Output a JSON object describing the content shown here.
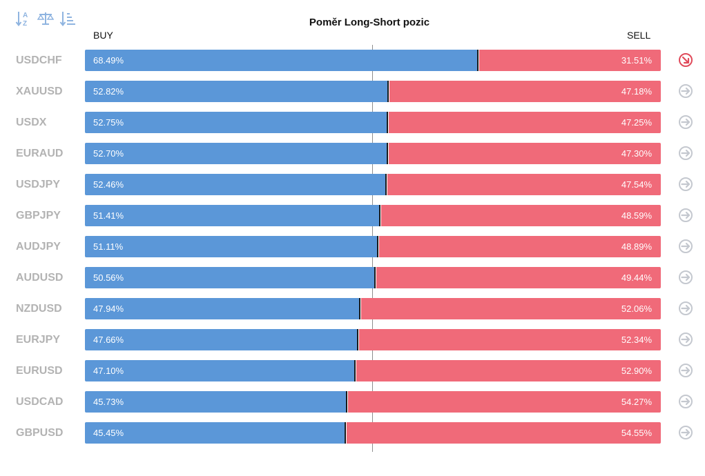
{
  "toolbar": {
    "icons": [
      "sort-alpha-icon",
      "balance-icon",
      "sort-list-icon"
    ]
  },
  "chart_data": {
    "type": "bar",
    "title": "Poměr Long-Short pozic",
    "series": [
      {
        "name": "BUY",
        "values": [
          68.49,
          52.82,
          52.75,
          52.7,
          52.46,
          51.41,
          51.11,
          50.56,
          47.94,
          47.66,
          47.1,
          45.73,
          45.45
        ]
      },
      {
        "name": "SELL",
        "values": [
          31.51,
          47.18,
          47.25,
          47.3,
          47.54,
          48.59,
          48.89,
          49.44,
          52.06,
          52.34,
          52.9,
          54.27,
          54.55
        ]
      }
    ],
    "categories": [
      "USDCHF",
      "XAUUSD",
      "USDX",
      "EURAUD",
      "USDJPY",
      "GBPJPY",
      "AUDJPY",
      "AUDUSD",
      "NZDUSD",
      "EURJPY",
      "EURUSD",
      "USDCAD",
      "GBPUSD"
    ],
    "rows": [
      {
        "symbol": "USDCHF",
        "buy": 68.49,
        "sell": 31.51,
        "buy_label": "68.49%",
        "sell_label": "31.51%",
        "signal": "down"
      },
      {
        "symbol": "XAUUSD",
        "buy": 52.82,
        "sell": 47.18,
        "buy_label": "52.82%",
        "sell_label": "47.18%",
        "signal": "neutral"
      },
      {
        "symbol": "USDX",
        "buy": 52.75,
        "sell": 47.25,
        "buy_label": "52.75%",
        "sell_label": "47.25%",
        "signal": "neutral"
      },
      {
        "symbol": "EURAUD",
        "buy": 52.7,
        "sell": 47.3,
        "buy_label": "52.70%",
        "sell_label": "47.30%",
        "signal": "neutral"
      },
      {
        "symbol": "USDJPY",
        "buy": 52.46,
        "sell": 47.54,
        "buy_label": "52.46%",
        "sell_label": "47.54%",
        "signal": "neutral"
      },
      {
        "symbol": "GBPJPY",
        "buy": 51.41,
        "sell": 48.59,
        "buy_label": "51.41%",
        "sell_label": "48.59%",
        "signal": "neutral"
      },
      {
        "symbol": "AUDJPY",
        "buy": 51.11,
        "sell": 48.89,
        "buy_label": "51.11%",
        "sell_label": "48.89%",
        "signal": "neutral"
      },
      {
        "symbol": "AUDUSD",
        "buy": 50.56,
        "sell": 49.44,
        "buy_label": "50.56%",
        "sell_label": "49.44%",
        "signal": "neutral"
      },
      {
        "symbol": "NZDUSD",
        "buy": 47.94,
        "sell": 52.06,
        "buy_label": "47.94%",
        "sell_label": "52.06%",
        "signal": "neutral"
      },
      {
        "symbol": "EURJPY",
        "buy": 47.66,
        "sell": 52.34,
        "buy_label": "47.66%",
        "sell_label": "52.34%",
        "signal": "neutral"
      },
      {
        "symbol": "EURUSD",
        "buy": 47.1,
        "sell": 52.9,
        "buy_label": "47.10%",
        "sell_label": "52.90%",
        "signal": "neutral"
      },
      {
        "symbol": "USDCAD",
        "buy": 45.73,
        "sell": 54.27,
        "buy_label": "45.73%",
        "sell_label": "54.27%",
        "signal": "neutral"
      },
      {
        "symbol": "GBPUSD",
        "buy": 45.45,
        "sell": 54.55,
        "buy_label": "45.45%",
        "sell_label": "54.55%",
        "signal": "neutral"
      }
    ],
    "ylim": [
      0,
      100
    ]
  },
  "colors": {
    "buy": "#5b97d8",
    "sell": "#f06a79",
    "signal_down": "#e04a5a",
    "signal_neutral": "#c4c8cf",
    "symbol_text": "#b3b3b3",
    "toolbar_icon": "#8fb4e0"
  }
}
